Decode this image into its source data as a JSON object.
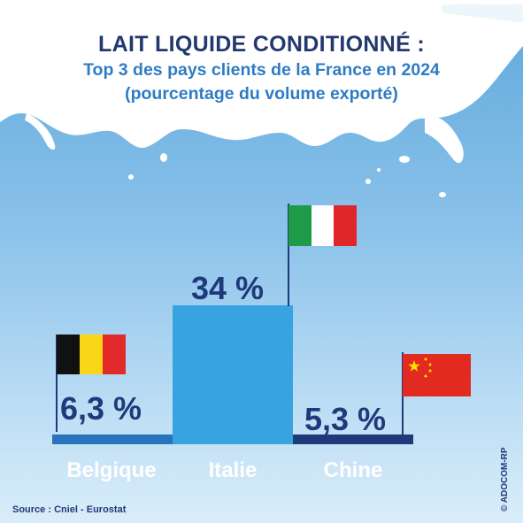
{
  "header": {
    "title": "LAIT LIQUIDE CONDITIONNÉ :",
    "subtitle_line1": "Top 3 des pays clients de la France en 2024",
    "subtitle_line2": "(pourcentage du volume exporté)"
  },
  "chart_data": {
    "type": "bar",
    "title": "LAIT LIQUIDE CONDITIONNÉ :",
    "subtitle": "Top 3 des pays clients de la France en 2024 (pourcentage du volume exporté)",
    "categories": [
      "Belgique",
      "Italie",
      "Chine"
    ],
    "values": [
      6.3,
      34,
      5.3
    ],
    "value_labels": [
      "6,3 %",
      "34 %",
      "5,3 %"
    ],
    "unit": "%",
    "ylim": [
      0,
      34
    ],
    "grid": false,
    "legend": "none",
    "flags": [
      "belgium-flag",
      "italy-flag",
      "china-flag"
    ],
    "colors": {
      "bar_belgique": "#2a74be",
      "bar_italie": "#37a3e0",
      "bar_chine": "#1f3a7a",
      "value_text": "#1f3a7a",
      "category_text": "#ffffff"
    }
  },
  "footer": {
    "source": "Source : Cniel - Eurostat",
    "credit": "© ADOCOM-RP"
  }
}
